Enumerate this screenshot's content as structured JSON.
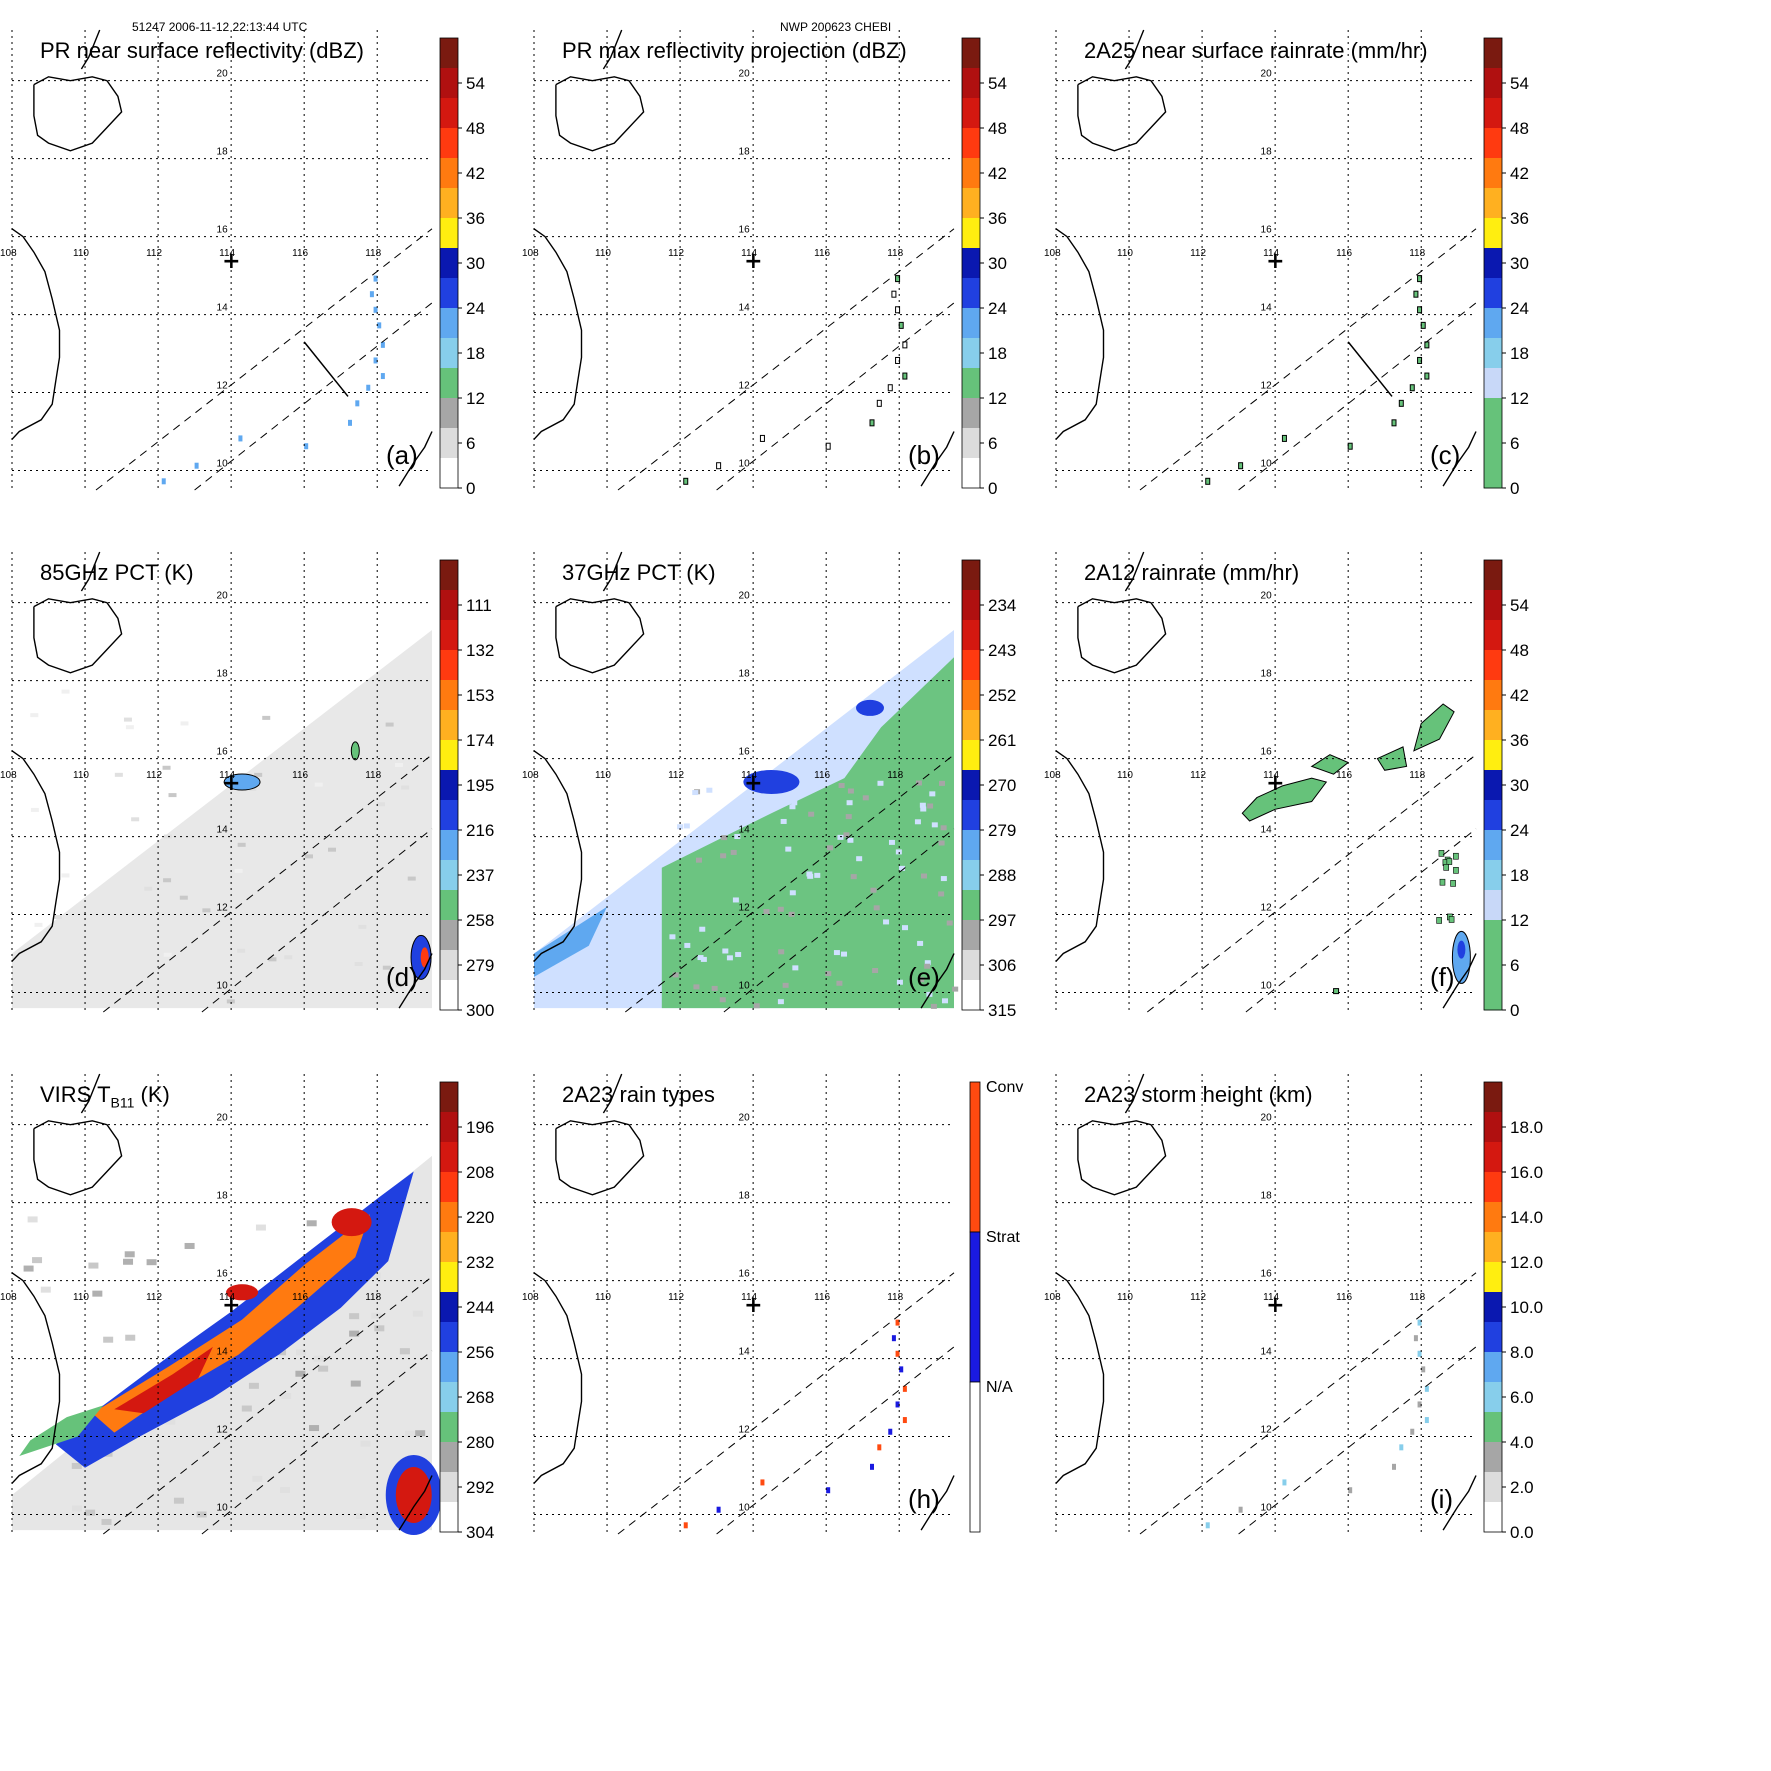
{
  "header": {
    "orbit_info": "51247 2006-11-12 22:13:44 UTC",
    "storm_info": "NWP 200623 CHEBI"
  },
  "map": {
    "lon_ticks": [
      "108",
      "110",
      "112",
      "114",
      "116",
      "118"
    ],
    "lat_ticks": [
      "10",
      "12",
      "14",
      "16",
      "18",
      "20"
    ],
    "storm_marker": "+",
    "storm_lon": 114.0,
    "storm_lat": 15.4,
    "lon_range": [
      108.0,
      119.5
    ],
    "lat_range": [
      9.5,
      21.3
    ]
  },
  "chart_data": [
    {
      "id": "a",
      "type": "heatmap",
      "label": "(a)",
      "title": "PR near surface reflectivity (dBZ)",
      "colorbar_ticks": [
        "54",
        "48",
        "42",
        "36",
        "30",
        "24",
        "18",
        "12",
        "6",
        "0"
      ],
      "colorbar_range": [
        0,
        60
      ],
      "swath": "pr",
      "field": "pr_near_surface"
    },
    {
      "id": "b",
      "type": "heatmap",
      "label": "(b)",
      "title": "PR max reflectivity projection (dBZ)",
      "colorbar_ticks": [
        "54",
        "48",
        "42",
        "36",
        "30",
        "24",
        "18",
        "12",
        "6",
        "0"
      ],
      "colorbar_range": [
        0,
        60
      ],
      "swath": "pr",
      "field": "pr_max"
    },
    {
      "id": "c",
      "type": "heatmap",
      "label": "(c)",
      "title": "2A25 near surface rainrate (mm/hr)",
      "colorbar_ticks": [
        "54",
        "48",
        "42",
        "36",
        "30",
        "24",
        "18",
        "12",
        "6",
        "0"
      ],
      "colorbar_range": [
        0,
        60
      ],
      "swath": "pr",
      "field": "rainrate_2a25"
    },
    {
      "id": "d",
      "type": "heatmap",
      "label": "(d)",
      "title": "85GHz PCT (K)",
      "colorbar_ticks": [
        "111",
        "132",
        "153",
        "174",
        "195",
        "216",
        "237",
        "258",
        "279",
        "300"
      ],
      "colorbar_range": [
        90,
        300
      ],
      "swath": "tmi",
      "field": "pct85"
    },
    {
      "id": "e",
      "type": "heatmap",
      "label": "(e)",
      "title": "37GHz PCT (K)",
      "colorbar_ticks": [
        "234",
        "243",
        "252",
        "261",
        "270",
        "279",
        "288",
        "297",
        "306",
        "315"
      ],
      "colorbar_range": [
        225,
        315
      ],
      "swath": "tmi",
      "field": "pct37"
    },
    {
      "id": "f",
      "type": "heatmap",
      "label": "(f)",
      "title": "2A12 rainrate (mm/hr)",
      "colorbar_ticks": [
        "54",
        "48",
        "42",
        "36",
        "30",
        "24",
        "18",
        "12",
        "6",
        "0"
      ],
      "colorbar_range": [
        0,
        60
      ],
      "swath": "tmi",
      "field": "rainrate_2a12"
    },
    {
      "id": "g",
      "type": "heatmap",
      "label": "",
      "title": "VIRS T",
      "title_sub": "B11",
      "title_tail": " (K)",
      "colorbar_ticks": [
        "196",
        "208",
        "220",
        "232",
        "244",
        "256",
        "268",
        "280",
        "292",
        "304"
      ],
      "colorbar_range": [
        184,
        304
      ],
      "swath": "virs",
      "field": "virs_tb11"
    },
    {
      "id": "h",
      "type": "heatmap",
      "label": "(h)",
      "title": "2A23 rain types",
      "colorbar_categories": [
        "Conv",
        "Strat",
        "N/A"
      ],
      "swath": "pr",
      "field": "rain_type"
    },
    {
      "id": "i",
      "type": "heatmap",
      "label": "(i)",
      "title": "2A23 storm height (km)",
      "colorbar_ticks": [
        "18.0",
        "16.0",
        "14.0",
        "12.0",
        "10.0",
        "8.0",
        "6.0",
        "4.0",
        "2.0",
        "0.0"
      ],
      "colorbar_range": [
        0,
        20
      ],
      "swath": "pr",
      "field": "storm_height"
    }
  ],
  "colors": {
    "palette": [
      "#ffffff",
      "#dcdcdc",
      "#a6a6a6",
      "#66c27a",
      "#87ceeb",
      "#5fa8f0",
      "#2040e0",
      "#0a18b0",
      "#ffee10",
      "#ffb020",
      "#ff7a10",
      "#ff3a10",
      "#d41810",
      "#b01010",
      "#7a1a10"
    ],
    "gray_ramp": [
      "#ffffff",
      "#f0f0f0",
      "#e0e0e0",
      "#c8c8c8",
      "#b0b0b0",
      "#909090"
    ],
    "rain_type": [
      "#ffffff",
      "#1a1ae0",
      "#ff4a10"
    ]
  }
}
